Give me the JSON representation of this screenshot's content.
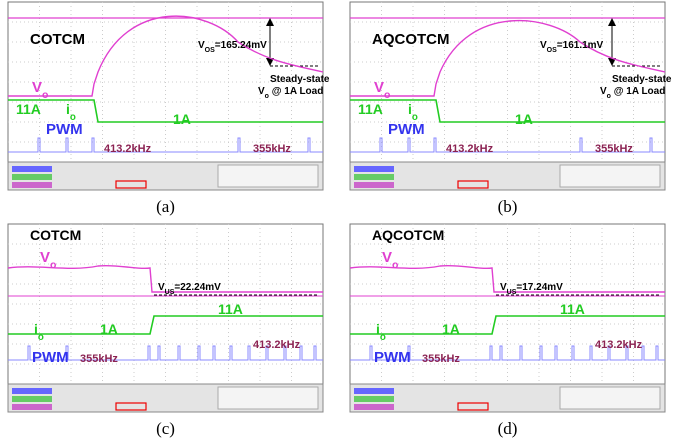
{
  "panels": [
    {
      "caption": "(a)",
      "title": "COTCM",
      "vo": {
        "main": "V",
        "sub": "o"
      },
      "io": {
        "main": "i",
        "sub": "o"
      },
      "io_before": "11A",
      "io_after": "1A",
      "pwm": "PWM",
      "freq_before": "413.2kHz",
      "freq_after": "355kHz",
      "deviation": {
        "main": "V",
        "sub": "OS",
        "value": "=165.24mV"
      },
      "steady_state": "Steady-state",
      "steady_vo": {
        "main": "V",
        "sub": "o",
        "rest": " @ 1A Load"
      }
    },
    {
      "caption": "(b)",
      "title": "AQCOTCM",
      "vo": {
        "main": "V",
        "sub": "o"
      },
      "io": {
        "main": "i",
        "sub": "o"
      },
      "io_before": "11A",
      "io_after": "1A",
      "pwm": "PWM",
      "freq_before": "413.2kHz",
      "freq_after": "355kHz",
      "deviation": {
        "main": "V",
        "sub": "OS",
        "value": "=161.1mV"
      },
      "steady_state": "Steady-state",
      "steady_vo": {
        "main": "V",
        "sub": "o",
        "rest": " @ 1A Load"
      }
    },
    {
      "caption": "(c)",
      "title": "COTCM",
      "vo": {
        "main": "V",
        "sub": "o"
      },
      "io": {
        "main": "i",
        "sub": "o"
      },
      "io_before": "1A",
      "io_after": "11A",
      "pwm": "PWM",
      "freq_before": "355kHz",
      "freq_after": "413.2kHz",
      "deviation": {
        "main": "V",
        "sub": "US",
        "value": "=22.24mV"
      }
    },
    {
      "caption": "(d)",
      "title": "AQCOTCM",
      "vo": {
        "main": "V",
        "sub": "o"
      },
      "io": {
        "main": "i",
        "sub": "o"
      },
      "io_before": "1A",
      "io_after": "11A",
      "pwm": "PWM",
      "freq_before": "355kHz",
      "freq_after": "413.2kHz",
      "deviation": {
        "main": "V",
        "sub": "US",
        "value": "=17.24mV"
      }
    }
  ]
}
